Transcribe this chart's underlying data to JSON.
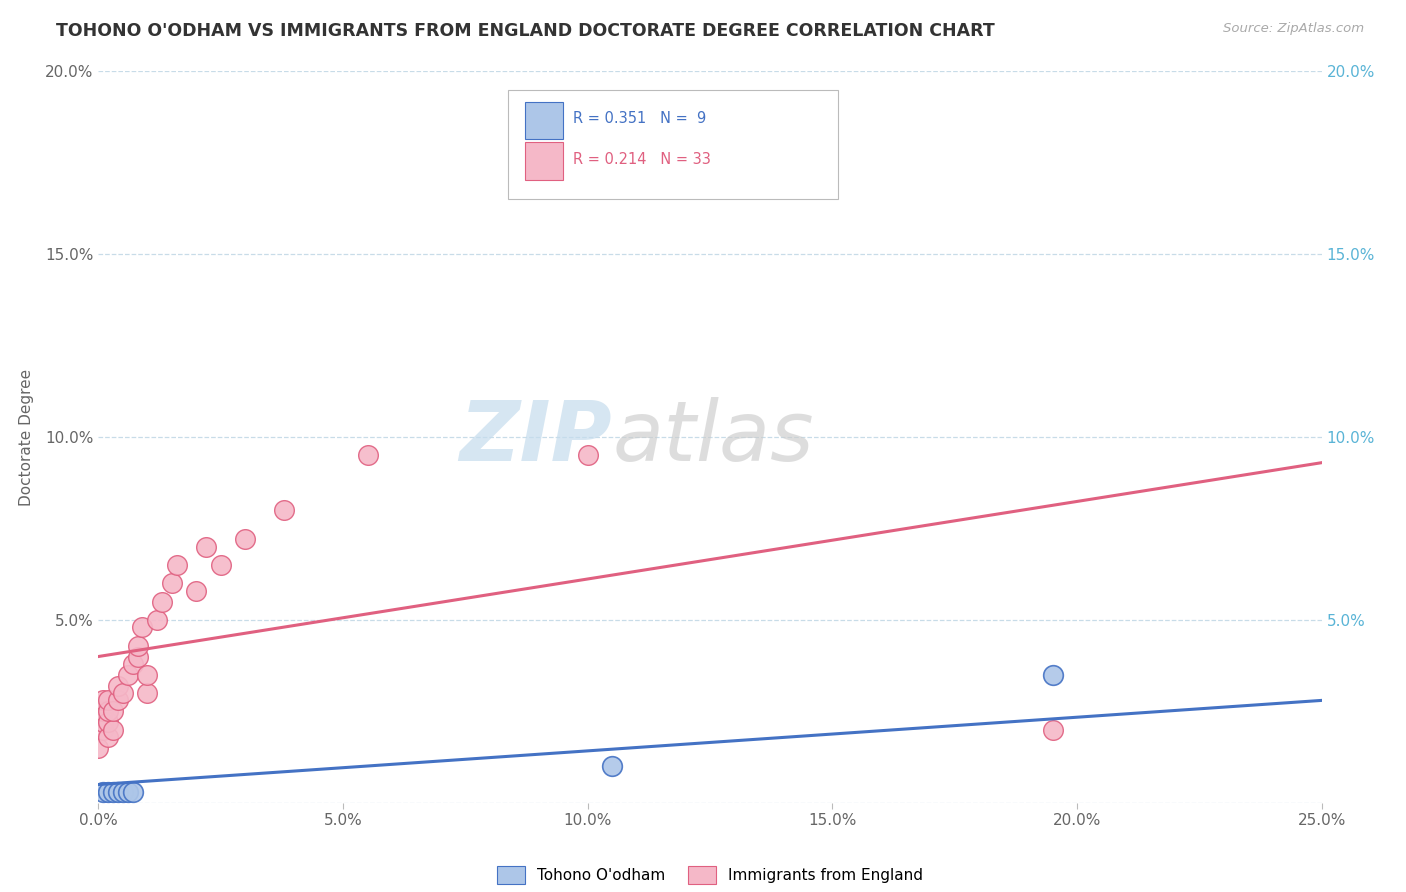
{
  "title": "TOHONO O'ODHAM VS IMMIGRANTS FROM ENGLAND DOCTORATE DEGREE CORRELATION CHART",
  "source": "Source: ZipAtlas.com",
  "ylabel": "Doctorate Degree",
  "xlim": [
    0.0,
    0.25
  ],
  "ylim": [
    0.0,
    0.2
  ],
  "xticks": [
    0.0,
    0.05,
    0.1,
    0.15,
    0.2,
    0.25
  ],
  "yticks": [
    0.0,
    0.05,
    0.1,
    0.15,
    0.2
  ],
  "series1_color": "#adc6e8",
  "series2_color": "#f5b8c8",
  "line1_color": "#4472c4",
  "line2_color": "#e06080",
  "right_tick_color": "#5ab4d6",
  "tohono_x": [
    0.001,
    0.002,
    0.003,
    0.004,
    0.005,
    0.006,
    0.007,
    0.105,
    0.195
  ],
  "tohono_y": [
    0.003,
    0.003,
    0.003,
    0.003,
    0.003,
    0.003,
    0.003,
    0.01,
    0.035
  ],
  "england_x": [
    0.0,
    0.001,
    0.001,
    0.001,
    0.001,
    0.002,
    0.002,
    0.002,
    0.002,
    0.003,
    0.003,
    0.004,
    0.004,
    0.005,
    0.006,
    0.007,
    0.008,
    0.008,
    0.009,
    0.01,
    0.01,
    0.012,
    0.013,
    0.015,
    0.016,
    0.02,
    0.022,
    0.025,
    0.03,
    0.038,
    0.055,
    0.1,
    0.195
  ],
  "england_y": [
    0.015,
    0.02,
    0.022,
    0.025,
    0.028,
    0.018,
    0.022,
    0.025,
    0.028,
    0.02,
    0.025,
    0.028,
    0.032,
    0.03,
    0.035,
    0.038,
    0.04,
    0.043,
    0.048,
    0.03,
    0.035,
    0.05,
    0.055,
    0.06,
    0.065,
    0.058,
    0.07,
    0.065,
    0.072,
    0.08,
    0.095,
    0.095,
    0.02
  ],
  "england_line_y0": 0.04,
  "england_line_y1": 0.093,
  "tohono_line_y0": 0.005,
  "tohono_line_y1": 0.028,
  "watermark_zip_color": "#c5dced",
  "watermark_atlas_color": "#cccccc"
}
